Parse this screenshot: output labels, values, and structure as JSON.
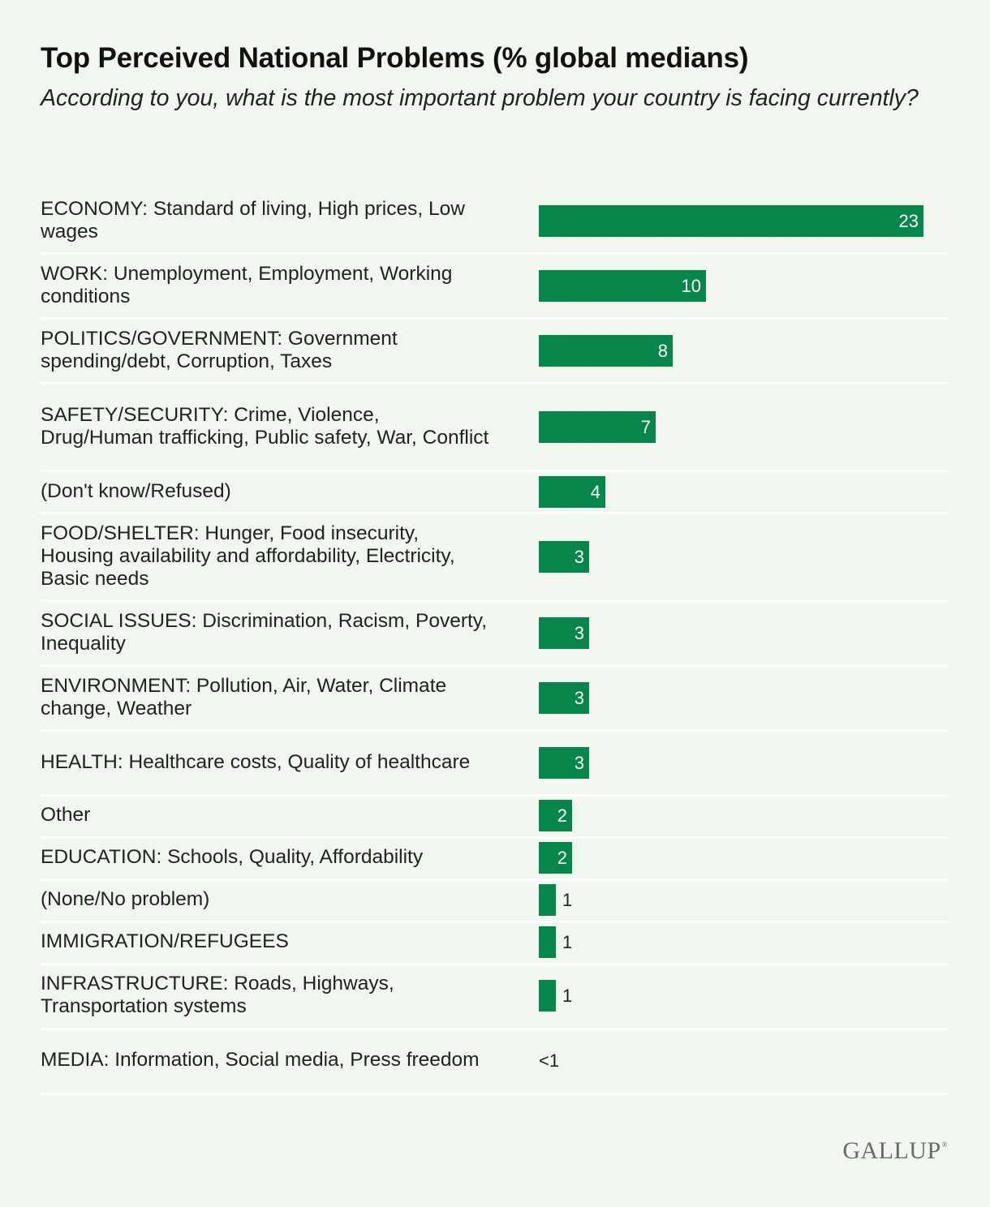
{
  "chart_data": {
    "type": "bar",
    "orientation": "horizontal",
    "title": "Top Perceived National Problems (% global medians)",
    "subtitle": "According to you, what is the most important problem your country is facing currently?",
    "xlabel": "",
    "ylabel": "",
    "xlim": [
      0,
      23
    ],
    "grid": false,
    "categories": [
      "ECONOMY: Standard of living, High prices, Low wages",
      "WORK: Unemployment, Employment, Working conditions",
      "POLITICS/GOVERNMENT: Government spending/debt, Corruption, Taxes",
      "SAFETY/SECURITY: Crime, Violence, Drug/Human trafficking, Public safety, War, Conflict",
      "(Don't know/Refused)",
      "FOOD/SHELTER: Hunger, Food insecurity, Housing availability and affordability, Electricity, Basic needs",
      "SOCIAL ISSUES: Discrimination, Racism, Poverty, Inequality",
      "ENVIRONMENT: Pollution, Air, Water, Climate change, Weather",
      "HEALTH: Healthcare costs, Quality of healthcare",
      "Other",
      "EDUCATION: Schools, Quality, Affordability",
      "(None/No problem)",
      "IMMIGRATION/REFUGEES",
      "INFRASTRUCTURE: Roads, Highways, Transportation systems",
      "MEDIA: Information, Social media, Press freedom"
    ],
    "values": [
      23,
      10,
      8,
      7,
      4,
      3,
      3,
      3,
      3,
      2,
      2,
      1,
      1,
      1,
      0
    ],
    "value_labels": [
      "23",
      "10",
      "8",
      "7",
      "4",
      "3",
      "3",
      "3",
      "3",
      "2",
      "2",
      "1",
      "1",
      "1",
      "<1"
    ],
    "bar_color": "#07864c"
  },
  "brand": {
    "logo_text": "GALLUP",
    "logo_mark": "®"
  },
  "colors": {
    "background": "#f1f6ee",
    "bar": "#07864c",
    "divider": "#ffffff"
  }
}
